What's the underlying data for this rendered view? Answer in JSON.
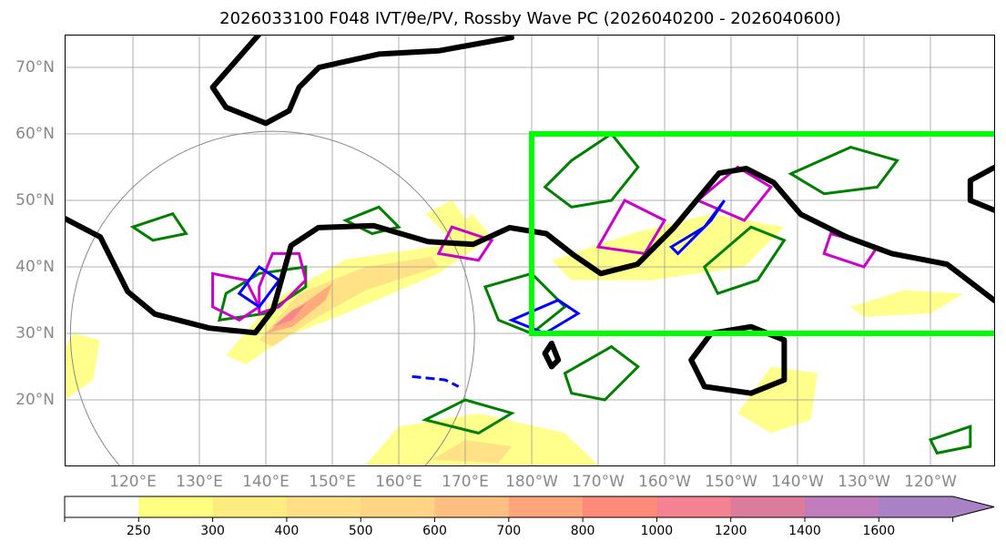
{
  "title": "2026033100 F048 IVT/θe/PV, Rossby Wave PC (2026040200 - 2026040600)",
  "chart_data": {
    "type": "map",
    "title": "2026033100 F048 IVT/θe/PV, Rossby Wave PC (2026040200 - 2026040600)",
    "lon_range": [
      109.7,
      249.7
    ],
    "lat_range": [
      10.1,
      75
    ],
    "lat_ticks": [
      {
        "v": 20,
        "label": "20°N"
      },
      {
        "v": 30,
        "label": "30°N"
      },
      {
        "v": 40,
        "label": "40°N"
      },
      {
        "v": 50,
        "label": "50°N"
      },
      {
        "v": 60,
        "label": "60°N"
      },
      {
        "v": 70,
        "label": "70°N"
      }
    ],
    "lon_ticks": [
      {
        "v": 120,
        "label": "120°E"
      },
      {
        "v": 130,
        "label": "130°E"
      },
      {
        "v": 140,
        "label": "140°E"
      },
      {
        "v": 150,
        "label": "150°E"
      },
      {
        "v": 160,
        "label": "160°E"
      },
      {
        "v": 170,
        "label": "170°E"
      },
      {
        "v": 180,
        "label": "180°W"
      },
      {
        "v": 190,
        "label": "170°W"
      },
      {
        "v": 200,
        "label": "160°W"
      },
      {
        "v": 210,
        "label": "150°W"
      },
      {
        "v": 220,
        "label": "140°W"
      },
      {
        "v": 230,
        "label": "130°W"
      },
      {
        "v": 240,
        "label": "120°W"
      }
    ],
    "grid": true,
    "colorbar": {
      "levels": [
        "250",
        "300",
        "400",
        "500",
        "600",
        "700",
        "800",
        "1000",
        "1200",
        "1400",
        "1600"
      ],
      "colors": [
        "#ffffff",
        "#ffff80",
        "#ffec80",
        "#ffdf85",
        "#ffd585",
        "#ffbf80",
        "#ffa57c",
        "#ff8a78",
        "#f58290",
        "#db7c9c",
        "#c07cbc",
        "#a882c4"
      ],
      "extend": "max"
    },
    "ivt_shading": [
      {
        "level": 1,
        "pts": [
          [
            134,
            26.7
          ],
          [
            141,
            34.9
          ],
          [
            152,
            41.1
          ],
          [
            166,
            43.2
          ],
          [
            171,
            48
          ],
          [
            174,
            44.5
          ],
          [
            166,
            39
          ],
          [
            152,
            33
          ],
          [
            143,
            29.5
          ],
          [
            137,
            25.3
          ]
        ]
      },
      {
        "level": 1,
        "pts": [
          [
            155,
            10.2
          ],
          [
            160,
            16
          ],
          [
            172,
            18
          ],
          [
            185,
            15
          ],
          [
            190,
            10.2
          ]
        ]
      },
      {
        "level": 1,
        "pts": [
          [
            183,
            41
          ],
          [
            195,
            45
          ],
          [
            207,
            48
          ],
          [
            218,
            46
          ],
          [
            212,
            40
          ],
          [
            198,
            38
          ],
          [
            186,
            38
          ]
        ]
      },
      {
        "level": 1,
        "pts": [
          [
            109.8,
            20
          ],
          [
            114,
            23
          ],
          [
            115,
            29
          ],
          [
            111,
            30
          ],
          [
            109.8,
            28
          ]
        ]
      },
      {
        "level": 1,
        "pts": [
          [
            211,
            18
          ],
          [
            216,
            25
          ],
          [
            223,
            24
          ],
          [
            222,
            17
          ],
          [
            216,
            15
          ]
        ]
      },
      {
        "level": 1,
        "pts": [
          [
            228,
            34
          ],
          [
            236,
            36.5
          ],
          [
            245,
            36
          ],
          [
            240,
            33
          ],
          [
            230,
            32.5
          ]
        ]
      },
      {
        "level": 1,
        "pts": [
          [
            164,
            48
          ],
          [
            168,
            50
          ],
          [
            171,
            46
          ],
          [
            168,
            44
          ]
        ]
      },
      {
        "level": 3,
        "pts": [
          [
            139,
            29
          ],
          [
            145,
            36
          ],
          [
            155,
            40
          ],
          [
            165,
            41.5
          ],
          [
            166,
            40
          ],
          [
            155,
            36.5
          ],
          [
            147,
            32
          ],
          [
            141,
            28
          ]
        ]
      },
      {
        "level": 3,
        "pts": [
          [
            165,
            11
          ],
          [
            170,
            14
          ],
          [
            177,
            13
          ],
          [
            175,
            10.5
          ]
        ]
      },
      {
        "level": 6,
        "pts": [
          [
            140,
            30
          ],
          [
            145,
            34
          ],
          [
            150,
            37.5
          ],
          [
            149,
            35
          ],
          [
            144,
            31
          ]
        ]
      },
      {
        "level": 8,
        "pts": [
          [
            141,
            31
          ],
          [
            144,
            33.5
          ],
          [
            146,
            34.5
          ],
          [
            144,
            32
          ]
        ]
      }
    ],
    "pv_contours": [
      {
        "closed": false,
        "pts": [
          [
            109.7,
            47.3
          ],
          [
            115.1,
            44.5
          ],
          [
            119.2,
            36.3
          ],
          [
            123.3,
            32.9
          ],
          [
            131.5,
            30.8
          ],
          [
            138.4,
            30.1
          ],
          [
            141.1,
            33.6
          ],
          [
            143.8,
            43.2
          ],
          [
            147.9,
            45.9
          ],
          [
            156.2,
            46.2
          ],
          [
            164.4,
            43.8
          ],
          [
            171.2,
            43.4
          ],
          [
            176.7,
            45.9
          ],
          [
            182.2,
            45
          ],
          [
            186.3,
            41.8
          ],
          [
            190.4,
            39
          ],
          [
            195.9,
            40.4
          ],
          [
            201.4,
            45.9
          ],
          [
            208.2,
            54.1
          ],
          [
            212.3,
            54.8
          ],
          [
            216.4,
            52.7
          ],
          [
            220.5,
            47.9
          ],
          [
            227.4,
            44.5
          ],
          [
            234.2,
            42
          ],
          [
            242.5,
            40.4
          ],
          [
            249.7,
            34.9
          ]
        ]
      },
      {
        "closed": false,
        "pts": [
          [
            139,
            75
          ],
          [
            132,
            67
          ],
          [
            134,
            64
          ],
          [
            140,
            61.6
          ],
          [
            143.5,
            63.5
          ],
          [
            145,
            67
          ],
          [
            148,
            70
          ],
          [
            157,
            72
          ],
          [
            166,
            72.5
          ],
          [
            177,
            74.5
          ]
        ]
      },
      {
        "closed": true,
        "pts": [
          [
            204,
            26
          ],
          [
            207,
            30
          ],
          [
            213,
            31
          ],
          [
            218,
            29
          ],
          [
            218,
            23
          ],
          [
            213,
            21
          ],
          [
            206,
            22
          ]
        ]
      },
      {
        "closed": false,
        "pts": [
          [
            249.7,
            55
          ],
          [
            246,
            53
          ],
          [
            246,
            50
          ],
          [
            249.7,
            48.5
          ]
        ]
      },
      {
        "closed": true,
        "pts": [
          [
            182,
            27
          ],
          [
            183,
            28.5
          ],
          [
            184,
            26
          ],
          [
            183,
            25
          ]
        ]
      }
    ],
    "theta_e_contours_green": [
      {
        "pts": [
          [
            120,
            46
          ],
          [
            126,
            48
          ],
          [
            128,
            45
          ],
          [
            123,
            44
          ]
        ]
      },
      {
        "pts": [
          [
            133,
            32
          ],
          [
            140,
            33
          ],
          [
            146,
            37
          ],
          [
            146,
            40
          ],
          [
            139,
            39
          ],
          [
            134,
            36
          ]
        ]
      },
      {
        "pts": [
          [
            173,
            37
          ],
          [
            180,
            39
          ],
          [
            185,
            34
          ],
          [
            180,
            30
          ],
          [
            175,
            32
          ]
        ]
      },
      {
        "pts": [
          [
            182,
            52
          ],
          [
            186,
            56
          ],
          [
            192,
            60
          ],
          [
            196,
            55
          ],
          [
            192,
            50
          ],
          [
            186,
            49
          ]
        ]
      },
      {
        "pts": [
          [
            206,
            40
          ],
          [
            213,
            46
          ],
          [
            218,
            44
          ],
          [
            214,
            38
          ],
          [
            208,
            36
          ]
        ]
      },
      {
        "pts": [
          [
            219,
            54
          ],
          [
            228,
            58
          ],
          [
            235,
            56
          ],
          [
            232,
            52
          ],
          [
            224,
            51
          ]
        ]
      },
      {
        "pts": [
          [
            185,
            24
          ],
          [
            192,
            28
          ],
          [
            196,
            25
          ],
          [
            191,
            20
          ],
          [
            186,
            21
          ]
        ]
      },
      {
        "pts": [
          [
            240,
            14
          ],
          [
            246,
            16
          ],
          [
            246,
            13
          ],
          [
            241,
            12
          ]
        ]
      },
      {
        "pts": [
          [
            152,
            47
          ],
          [
            157,
            49
          ],
          [
            160,
            46
          ],
          [
            156,
            45
          ]
        ]
      },
      {
        "pts": [
          [
            164,
            17
          ],
          [
            170,
            20
          ],
          [
            177,
            18
          ],
          [
            172,
            15
          ]
        ]
      }
    ],
    "magenta_contours": [
      {
        "pts": [
          [
            139,
            37
          ],
          [
            141,
            42
          ],
          [
            145,
            42
          ],
          [
            146,
            38
          ],
          [
            142,
            34
          ],
          [
            139,
            33
          ]
        ]
      },
      {
        "pts": [
          [
            132,
            39
          ],
          [
            137,
            38
          ],
          [
            139,
            34
          ],
          [
            136,
            32
          ],
          [
            132,
            34
          ]
        ]
      },
      {
        "pts": [
          [
            168,
            46
          ],
          [
            174,
            44
          ],
          [
            172,
            41
          ],
          [
            166,
            42
          ]
        ]
      },
      {
        "pts": [
          [
            190,
            43
          ],
          [
            194,
            50
          ],
          [
            200,
            47
          ],
          [
            197,
            42
          ]
        ]
      },
      {
        "pts": [
          [
            205,
            50
          ],
          [
            211,
            55
          ],
          [
            216,
            52
          ],
          [
            212,
            47
          ]
        ]
      },
      {
        "pts": [
          [
            225,
            45
          ],
          [
            232,
            43
          ],
          [
            230,
            40
          ],
          [
            224,
            42
          ]
        ]
      }
    ],
    "blue_contours": [
      {
        "pts": [
          [
            136,
            36
          ],
          [
            139,
            40
          ],
          [
            142,
            38
          ],
          [
            139,
            34
          ]
        ]
      },
      {
        "pts": [
          [
            177,
            32
          ],
          [
            184,
            35
          ],
          [
            187,
            33
          ],
          [
            182,
            30
          ]
        ]
      },
      {
        "pts": [
          [
            201,
            43
          ],
          [
            206,
            46
          ],
          [
            209,
            50
          ],
          [
            207,
            47
          ],
          [
            202,
            42
          ]
        ]
      },
      {
        "dashed": true,
        "pts": [
          [
            162,
            23.5
          ],
          [
            167,
            23
          ],
          [
            169,
            22
          ]
        ]
      }
    ],
    "target_box": {
      "lon": [
        180,
        249.7
      ],
      "lat": [
        30,
        60
      ],
      "color": "#00ff00"
    },
    "circle": {
      "center": [
        141,
        30
      ],
      "radius_deg": 30.4,
      "color": "#888888"
    }
  }
}
